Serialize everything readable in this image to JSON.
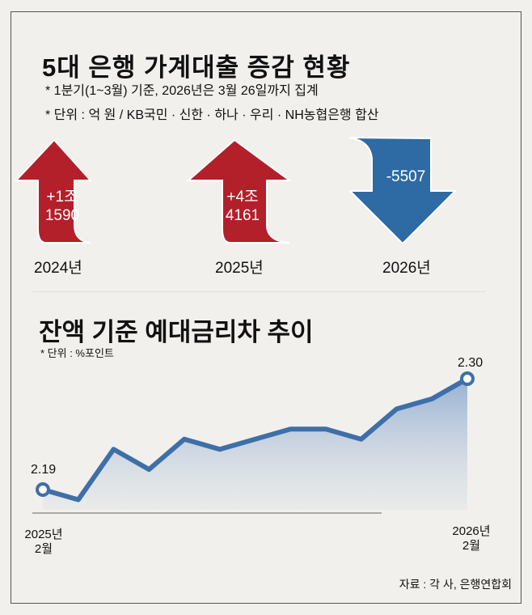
{
  "title": "5대 은행 가계대출 증감 현황",
  "notes": [
    "* 1분기(1~3월) 기준, 2026년은 3월 26일까지 집계",
    "* 단위 : 억 원 / KB국민 · 신한 · 하나 · 우리 · NH농협은행 합산"
  ],
  "arrows": [
    {
      "year": "2024년",
      "line1": "+1조",
      "line2": "1590",
      "direction": "up",
      "color": "#b3202a"
    },
    {
      "year": "2025년",
      "line1": "+4조",
      "line2": "4161",
      "direction": "up",
      "color": "#b3202a"
    },
    {
      "year": "2026년",
      "line1": "-5507",
      "line2": "",
      "direction": "down",
      "color": "#2e6aa3"
    }
  ],
  "chart_data": {
    "type": "area",
    "title": "잔액 기준 예대금리차 추이",
    "unit_note": "* 단위 : %포인트",
    "x_labels": [
      {
        "line1": "2025년",
        "line2": "2월"
      },
      {
        "line1": "2026년",
        "line2": "2월"
      }
    ],
    "values": [
      2.19,
      2.18,
      2.23,
      2.21,
      2.24,
      2.23,
      2.24,
      2.25,
      2.25,
      2.24,
      2.27,
      2.28,
      2.3
    ],
    "labels": {
      "first": "2.19",
      "last": "2.30"
    },
    "line_color": "#3e6fa8"
  },
  "source": "자료 : 각 사, 은행연합회"
}
